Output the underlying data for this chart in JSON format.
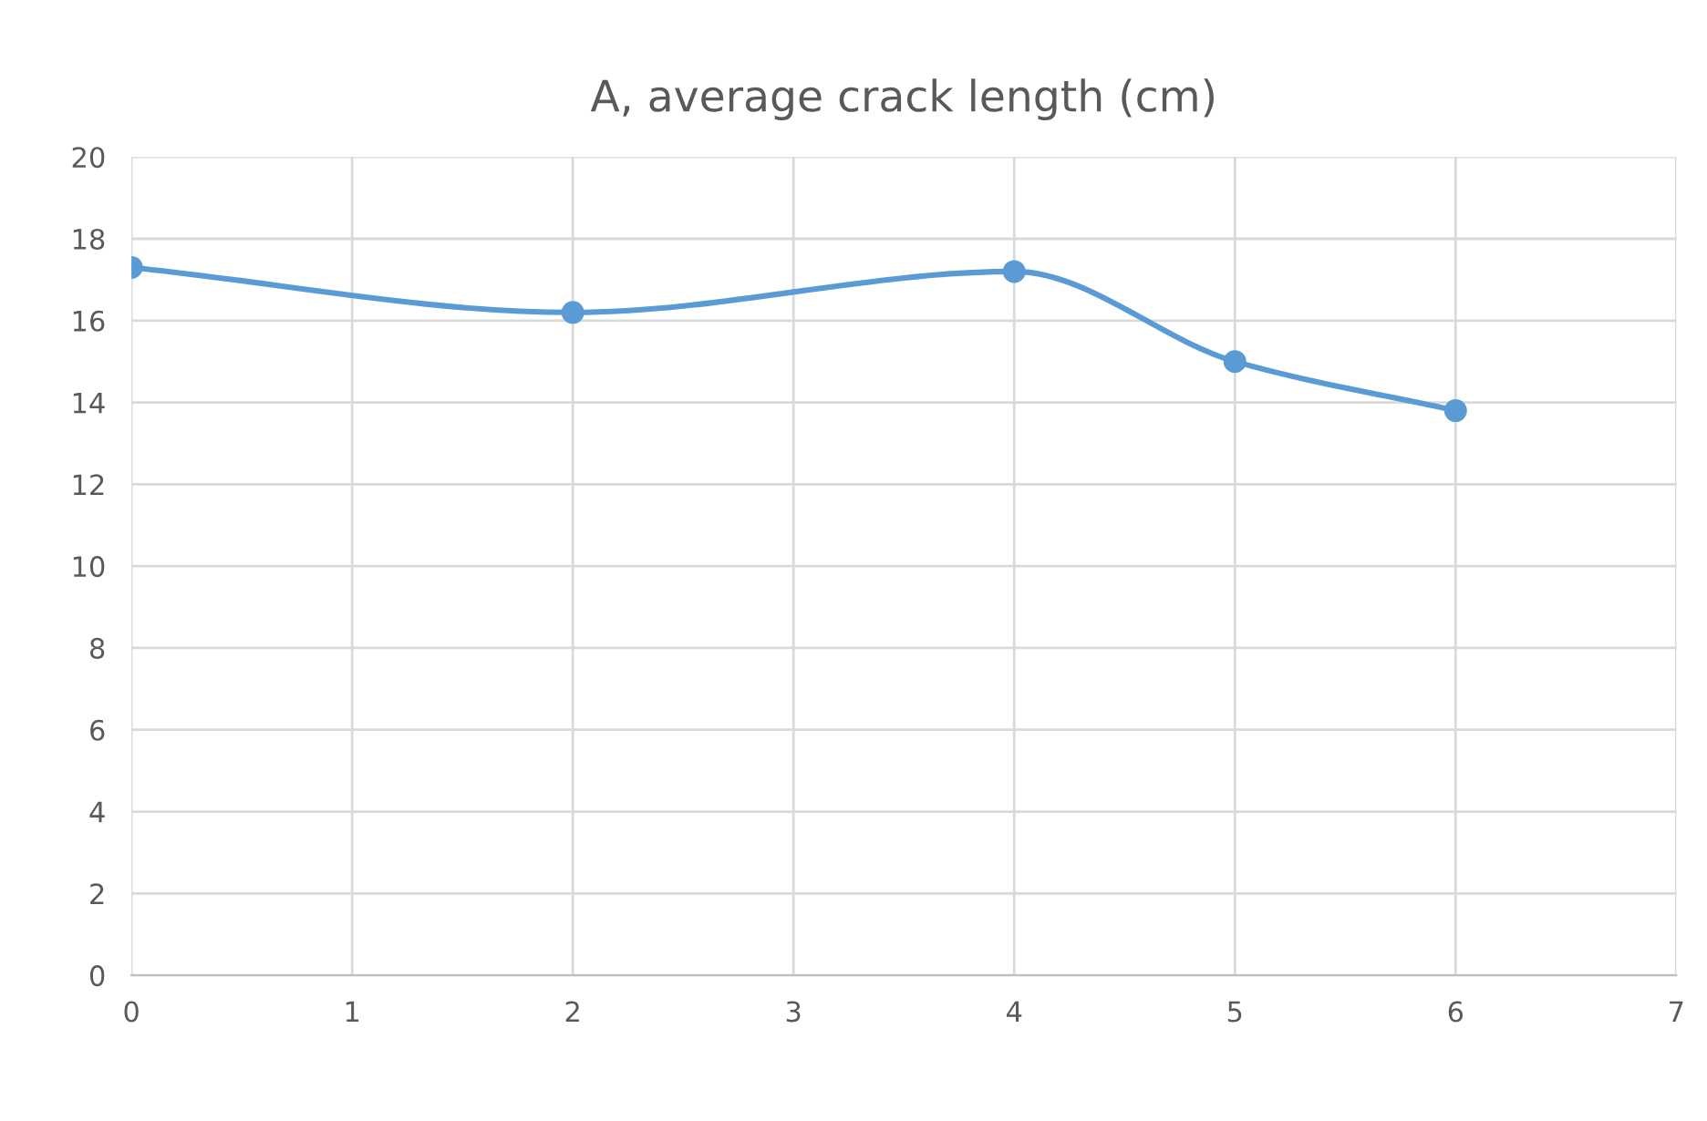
{
  "chart_data": {
    "type": "line",
    "title": "A, average crack length (cm)",
    "x": [
      0,
      2,
      4,
      5,
      6
    ],
    "series": [
      {
        "color": "#5b9bd5",
        "values": [
          17.3,
          16.2,
          17.2,
          15.0,
          13.8
        ]
      }
    ],
    "xlim": [
      0,
      7
    ],
    "xticks": [
      0,
      1,
      2,
      3,
      4,
      5,
      6,
      7
    ],
    "ylim": [
      0,
      20
    ],
    "yticks": [
      0,
      2,
      4,
      6,
      8,
      10,
      12,
      14,
      16,
      18,
      20
    ],
    "grid": true,
    "marker": "circle",
    "line_style": "solid",
    "legend": false
  }
}
